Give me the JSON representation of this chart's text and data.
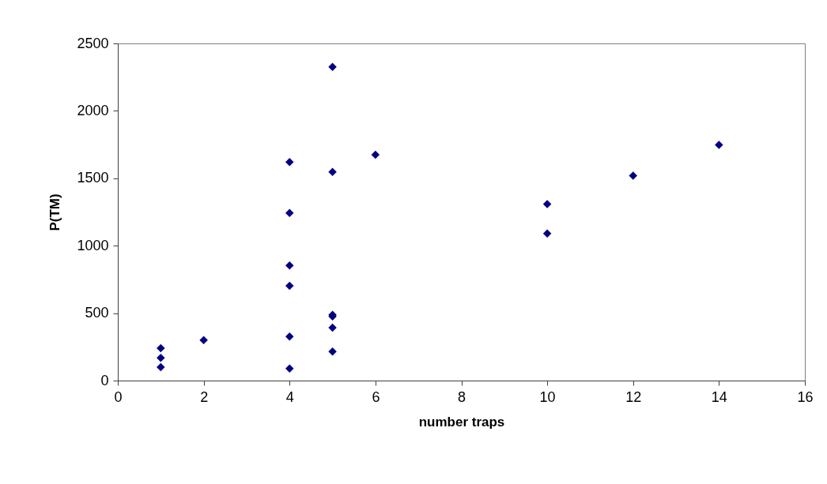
{
  "chart_data": {
    "type": "scatter",
    "xlabel": "number traps",
    "ylabel": "P(TM)",
    "x": [
      1,
      1,
      1,
      2,
      4,
      4,
      4,
      4,
      4,
      4,
      5,
      5,
      5,
      5,
      5,
      5,
      6,
      10,
      10,
      12,
      14
    ],
    "series": [
      {
        "color": "#000080",
        "values": [
          240,
          168,
          99,
          300,
          1620,
          1243,
          853,
          703,
          327,
          89,
          2326,
          1547,
          488,
          475,
          392,
          215,
          1674,
          1309,
          1090,
          1520,
          1748
        ]
      }
    ],
    "xlim": [
      0,
      16
    ],
    "xticks": [
      0,
      2,
      4,
      6,
      8,
      10,
      12,
      14,
      16
    ],
    "ylim": [
      0,
      2500
    ],
    "yticks": [
      0,
      500,
      1000,
      1500,
      2000,
      2500
    ],
    "marker": "diamond",
    "grid": false,
    "legend": false
  }
}
